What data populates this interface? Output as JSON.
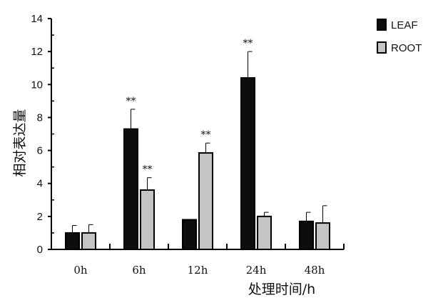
{
  "chart_data": {
    "type": "bar",
    "categories": [
      "0h",
      "6h",
      "12h",
      "24h",
      "48h"
    ],
    "series": [
      {
        "name": "LEAF",
        "color": "#0d0d0d",
        "values": [
          1.0,
          7.3,
          1.8,
          10.4,
          1.7
        ],
        "errors": [
          0.45,
          1.2,
          0.0,
          1.6,
          0.55
        ],
        "annotations": [
          "",
          "**",
          "",
          "**",
          ""
        ]
      },
      {
        "name": "ROOT",
        "color": "#c4c4c4",
        "values": [
          1.0,
          3.6,
          5.85,
          2.0,
          1.6
        ],
        "errors": [
          0.5,
          0.75,
          0.6,
          0.25,
          1.05
        ],
        "annotations": [
          "",
          "**",
          "**",
          "",
          ""
        ]
      }
    ],
    "title": "",
    "xlabel": "处理时间/h",
    "ylabel": "相对表达量",
    "ylim": [
      0,
      14
    ],
    "yticks": [
      0,
      2,
      4,
      6,
      8,
      10,
      12,
      14
    ],
    "grid": false,
    "legend": "top-right"
  }
}
